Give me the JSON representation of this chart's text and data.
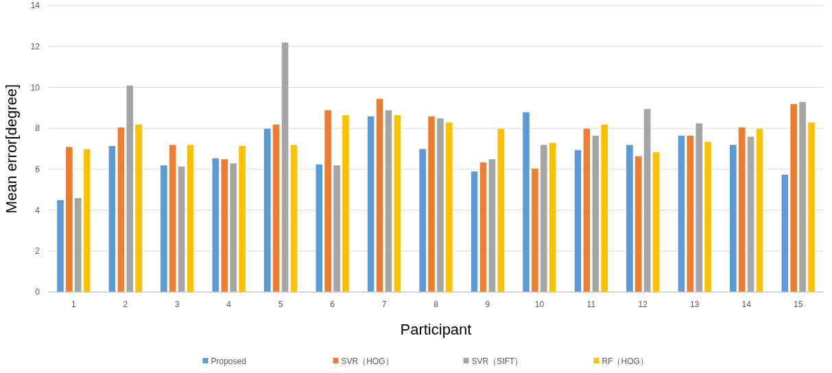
{
  "chart_data": {
    "type": "bar",
    "xlabel": "Participant",
    "ylabel": "Mean error[degree]",
    "categories": [
      "1",
      "2",
      "3",
      "4",
      "5",
      "6",
      "7",
      "8",
      "9",
      "10",
      "11",
      "12",
      "13",
      "14",
      "15"
    ],
    "series": [
      {
        "name": "Proposed",
        "color": "#5b9bd5",
        "values": [
          4.5,
          7.15,
          6.2,
          6.55,
          8.0,
          6.25,
          8.6,
          7.0,
          5.9,
          8.8,
          6.95,
          7.2,
          7.65,
          7.2,
          5.75
        ]
      },
      {
        "name": "SVR（HOG）",
        "color": "#ed7d31",
        "values": [
          7.1,
          8.05,
          7.2,
          6.5,
          8.2,
          8.9,
          9.45,
          8.6,
          6.35,
          6.05,
          8.0,
          6.65,
          7.65,
          8.05,
          9.2
        ]
      },
      {
        "name": "SVR（SIFT）",
        "color": "#a5a5a5",
        "values": [
          4.6,
          10.1,
          6.15,
          6.3,
          12.2,
          6.2,
          8.9,
          8.5,
          6.5,
          7.2,
          7.65,
          8.95,
          8.25,
          7.6,
          9.3
        ]
      },
      {
        "name": "RF（HOG）",
        "color": "#ffc000",
        "values": [
          7.0,
          8.2,
          7.2,
          7.15,
          7.2,
          8.65,
          8.65,
          8.3,
          8.0,
          7.3,
          8.2,
          6.85,
          7.35,
          8.0,
          8.3
        ]
      }
    ],
    "ylim": [
      0,
      14
    ],
    "yticks": [
      0,
      2,
      4,
      6,
      8,
      10,
      12,
      14
    ],
    "grid": "y",
    "legend": "bottom"
  }
}
